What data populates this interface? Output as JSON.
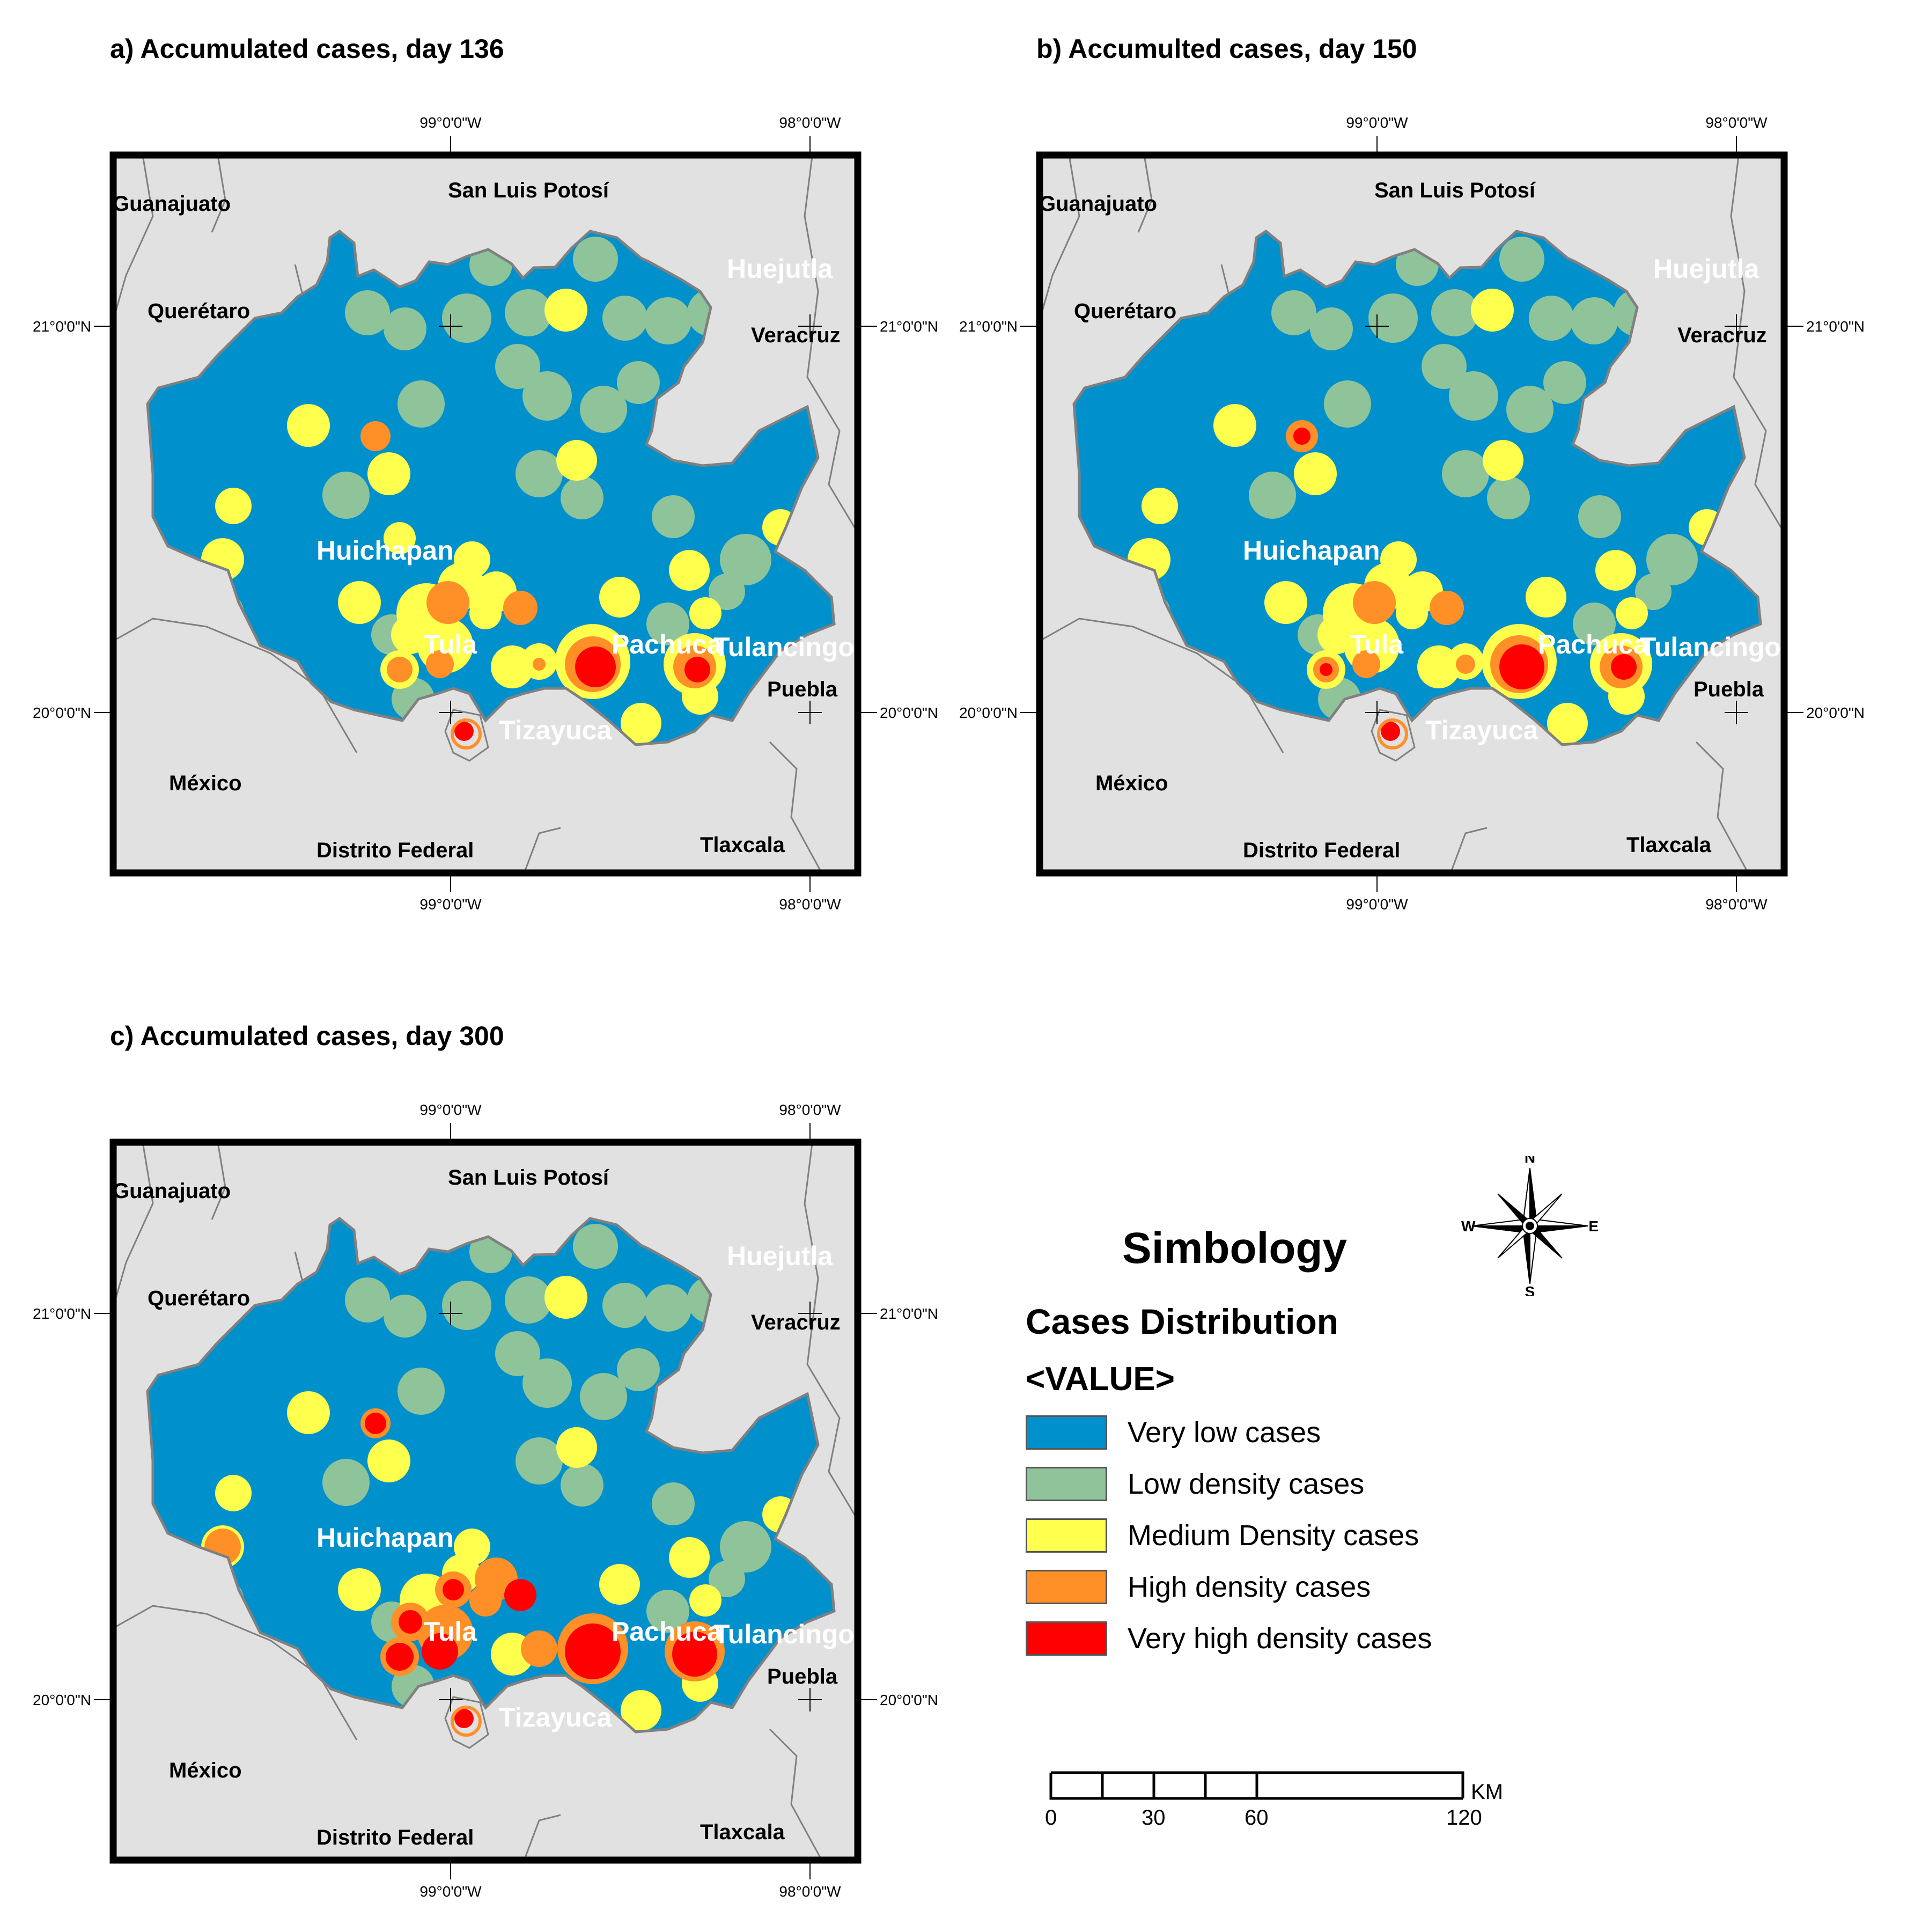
{
  "panels": [
    {
      "id": "a",
      "title": "a) Accumulated cases, day 136"
    },
    {
      "id": "b",
      "title": "b) Accumulted cases, day 150"
    },
    {
      "id": "c",
      "title": "c) Accumulated cases, day 300"
    }
  ],
  "coordinates": {
    "lon_left": "99°0'0\"W",
    "lon_right": "98°0'0\"W",
    "lat_top": "21°0'0\"N",
    "lat_bottom": "20°0'0\"N"
  },
  "place_labels": {
    "guanajuato": "Guanajuato",
    "san_luis_potosi": "San Luis Potosí",
    "queretaro": "Querétaro",
    "veracruz": "Veracruz",
    "huejutla": "Huejutla",
    "huichapan": "Huichapan",
    "tula": "Tula",
    "pachuca": "Pachuca",
    "tulancingo": "Tulancingo",
    "puebla": "Puebla",
    "tizayuca": "Tizayuca",
    "mexico": "México",
    "distrito_federal": "Distrito Federal",
    "tlaxcala": "Tlaxcala"
  },
  "legend": {
    "title": "Simbology",
    "subtitle": "Cases Distribution",
    "field": "<VALUE>",
    "items": [
      {
        "label": "Very low cases",
        "color": "#0090cc"
      },
      {
        "label": "Low density cases",
        "color": "#8fc39a"
      },
      {
        "label": "Medium Density cases",
        "color": "#ffff4d"
      },
      {
        "label": "High density cases",
        "color": "#ff9028"
      },
      {
        "label": "Very high density cases",
        "color": "#ff0000"
      }
    ]
  },
  "compass": {
    "n": "N",
    "s": "S",
    "e": "E",
    "w": "W"
  },
  "scale_bar": {
    "ticks": [
      "0",
      "30",
      "60",
      "120"
    ],
    "unit": "KM"
  },
  "colors": {
    "background_land": "#e1e1e1",
    "state_border": "#808080",
    "frame": "#000000"
  }
}
